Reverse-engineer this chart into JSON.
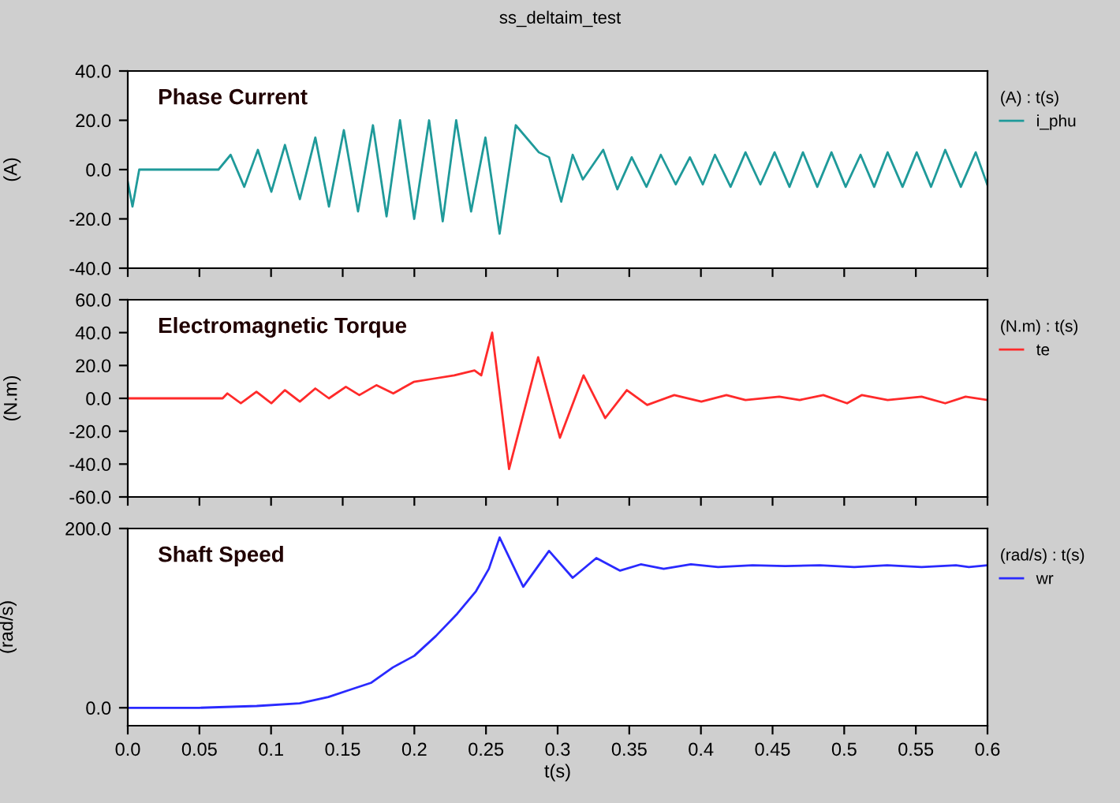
{
  "chart_data": [
    {
      "type": "line",
      "title": "Phase Current",
      "ylabel": "(A)",
      "legend_title": "(A) : t(s)",
      "legend": "right",
      "tick_labels": "y",
      "grid": false,
      "annotations": [
        "ss_deltaim_test"
      ],
      "xlim": [
        0,
        0.6
      ],
      "xticks": [
        {
          "value": 0,
          "label": null
        },
        {
          "value": 0.05,
          "label": null
        },
        {
          "value": 0.1,
          "label": null
        },
        {
          "value": 0.15,
          "label": null
        },
        {
          "value": 0.2,
          "label": null
        },
        {
          "value": 0.25,
          "label": null
        },
        {
          "value": 0.3,
          "label": null
        },
        {
          "value": 0.35,
          "label": null
        },
        {
          "value": 0.4,
          "label": null
        },
        {
          "value": 0.45,
          "label": null
        },
        {
          "value": 0.5,
          "label": null
        },
        {
          "value": 0.55,
          "label": null
        },
        {
          "value": 0.6,
          "label": null
        }
      ],
      "ylim": [
        -40,
        40
      ],
      "yticks": [
        {
          "value": -40,
          "label": "-40.0"
        },
        {
          "value": -20,
          "label": "-20.0"
        },
        {
          "value": 0,
          "label": "0.0"
        },
        {
          "value": 20,
          "label": "20.0"
        },
        {
          "value": 40,
          "label": "40.0"
        }
      ],
      "x": [
        0,
        0.0033,
        0.008,
        0.0633,
        0.0718,
        0.0813,
        0.0908,
        0.1002,
        0.1097,
        0.1201,
        0.1309,
        0.1404,
        0.1508,
        0.1607,
        0.1711,
        0.1806,
        0.19,
        0.1999,
        0.2103,
        0.2198,
        0.2292,
        0.2396,
        0.2496,
        0.2595,
        0.2708,
        0.2869,
        0.294,
        0.3025,
        0.3105,
        0.3176,
        0.3318,
        0.3417,
        0.3517,
        0.362,
        0.372,
        0.3824,
        0.3923,
        0.4013,
        0.4098,
        0.4207,
        0.4311,
        0.4415,
        0.4514,
        0.4618,
        0.4712,
        0.4812,
        0.4911,
        0.501,
        0.5114,
        0.5209,
        0.5303,
        0.5407,
        0.5506,
        0.5606,
        0.5705,
        0.5814,
        0.5918,
        0.5998
      ],
      "series": [
        {
          "name": "i_phu",
          "color": "#1f9a9a",
          "values": [
            -5,
            -15,
            0,
            0,
            6,
            -7,
            8,
            -9,
            10,
            -12,
            13,
            -15,
            16,
            -17,
            18,
            -19,
            20,
            -20,
            20,
            -21,
            20,
            -17,
            13,
            -26,
            18,
            7,
            5,
            -13,
            6,
            -4,
            8,
            -8,
            5,
            -7,
            6,
            -6,
            5,
            -6,
            6,
            -7,
            7,
            -6,
            7,
            -7,
            7,
            -7,
            7,
            -7,
            6,
            -7,
            7,
            -7,
            7,
            -7,
            8,
            -7,
            7,
            -6
          ]
        }
      ]
    },
    {
      "type": "line",
      "title": "Electromagnetic Torque",
      "ylabel": "(N.m)",
      "legend_title": "(N.m) : t(s)",
      "legend": "right",
      "tick_labels": "y",
      "grid": false,
      "xlim": [
        0,
        0.6
      ],
      "xticks": [
        {
          "value": 0,
          "label": null
        },
        {
          "value": 0.05,
          "label": null
        },
        {
          "value": 0.1,
          "label": null
        },
        {
          "value": 0.15,
          "label": null
        },
        {
          "value": 0.2,
          "label": null
        },
        {
          "value": 0.25,
          "label": null
        },
        {
          "value": 0.3,
          "label": null
        },
        {
          "value": 0.35,
          "label": null
        },
        {
          "value": 0.4,
          "label": null
        },
        {
          "value": 0.45,
          "label": null
        },
        {
          "value": 0.5,
          "label": null
        },
        {
          "value": 0.55,
          "label": null
        },
        {
          "value": 0.6,
          "label": null
        }
      ],
      "ylim": [
        -60,
        60
      ],
      "yticks": [
        {
          "value": -60,
          "label": "-60.0"
        },
        {
          "value": -40,
          "label": "-40.0"
        },
        {
          "value": -20,
          "label": "-20.0"
        },
        {
          "value": 0,
          "label": "0.0"
        },
        {
          "value": 20,
          "label": "20.0"
        },
        {
          "value": 40,
          "label": "40.0"
        },
        {
          "value": 60,
          "label": "60.0"
        }
      ],
      "x": [
        0,
        0.0662,
        0.0695,
        0.0789,
        0.0898,
        0.1002,
        0.1097,
        0.1201,
        0.1309,
        0.1404,
        0.1522,
        0.1616,
        0.1735,
        0.1853,
        0.1995,
        0.2136,
        0.2278,
        0.242,
        0.2467,
        0.2543,
        0.2661,
        0.2864,
        0.3016,
        0.3181,
        0.3332,
        0.3483,
        0.3625,
        0.3814,
        0.4003,
        0.4178,
        0.4311,
        0.4547,
        0.4689,
        0.4854,
        0.502,
        0.5124,
        0.5303,
        0.554,
        0.5705,
        0.5847,
        0.5998
      ],
      "series": [
        {
          "name": "te",
          "color": "#ff2a2a",
          "values": [
            0,
            0,
            3,
            -3,
            4,
            -3,
            5,
            -2,
            6,
            0,
            7,
            2,
            8,
            3,
            10,
            12,
            14,
            17,
            14,
            40,
            -43,
            25,
            -24,
            14,
            -12,
            5,
            -4,
            2,
            -2,
            2,
            -1,
            1,
            -1,
            2,
            -3,
            2,
            -1,
            1,
            -3,
            1,
            -1
          ]
        }
      ]
    },
    {
      "type": "line",
      "title": "Shaft Speed",
      "ylabel": "(rad/s)",
      "xlabel": "t(s)",
      "legend_title": "(rad/s) : t(s)",
      "legend": "right",
      "grid": false,
      "xlim": [
        0,
        0.6
      ],
      "xticks": [
        {
          "value": 0,
          "label": "0.0"
        },
        0.05,
        0.1,
        0.15,
        0.2,
        0.25,
        0.3,
        0.35,
        0.4,
        0.45,
        0.5,
        0.55,
        0.6
      ],
      "ylim": [
        -20,
        200
      ],
      "yticks": [
        {
          "value": 0,
          "label": "0.0"
        },
        {
          "value": 200,
          "label": "200.0"
        }
      ],
      "x": [
        0,
        0.05,
        0.09,
        0.12,
        0.14,
        0.155,
        0.17,
        0.185,
        0.2,
        0.215,
        0.23,
        0.243,
        0.252,
        0.2595,
        0.276,
        0.294,
        0.3105,
        0.327,
        0.3436,
        0.358,
        0.374,
        0.393,
        0.412,
        0.436,
        0.459,
        0.483,
        0.507,
        0.53,
        0.554,
        0.578,
        0.587,
        0.6
      ],
      "series": [
        {
          "name": "wr",
          "color": "#2a2aff",
          "values": [
            0,
            0,
            2,
            5,
            12,
            20,
            28,
            45,
            58,
            80,
            105,
            130,
            155,
            190,
            135,
            175,
            145,
            167,
            153,
            160,
            155,
            160,
            157,
            159,
            158,
            159,
            157,
            159,
            157,
            159,
            157,
            159
          ]
        }
      ]
    }
  ]
}
